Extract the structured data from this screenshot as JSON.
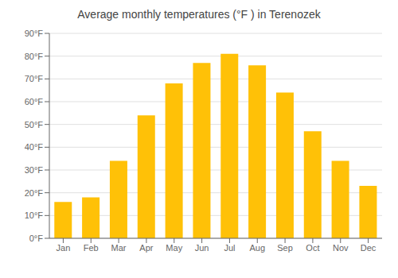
{
  "chart_data": {
    "type": "bar",
    "title": "Average monthly temperatures (°F ) in Terenozek",
    "categories": [
      "Jan",
      "Feb",
      "Mar",
      "Apr",
      "May",
      "Jun",
      "Jul",
      "Aug",
      "Sep",
      "Oct",
      "Nov",
      "Dec"
    ],
    "values": [
      16,
      18,
      34,
      54,
      68,
      77,
      81,
      76,
      64,
      47,
      34,
      23
    ],
    "color": "#FFC107",
    "ylim": [
      0,
      90
    ],
    "yticks": [
      {
        "value": 0,
        "label": "0°F"
      },
      {
        "value": 10,
        "label": "10°F"
      },
      {
        "value": 20,
        "label": "20°F"
      },
      {
        "value": 30,
        "label": "30°F"
      },
      {
        "value": 40,
        "label": "40°F"
      },
      {
        "value": 50,
        "label": "50°F"
      },
      {
        "value": 60,
        "label": "60°F"
      },
      {
        "value": 70,
        "label": "70°F"
      },
      {
        "value": 80,
        "label": "80°F"
      },
      {
        "value": 90,
        "label": "90°F"
      }
    ],
    "grid": true
  }
}
